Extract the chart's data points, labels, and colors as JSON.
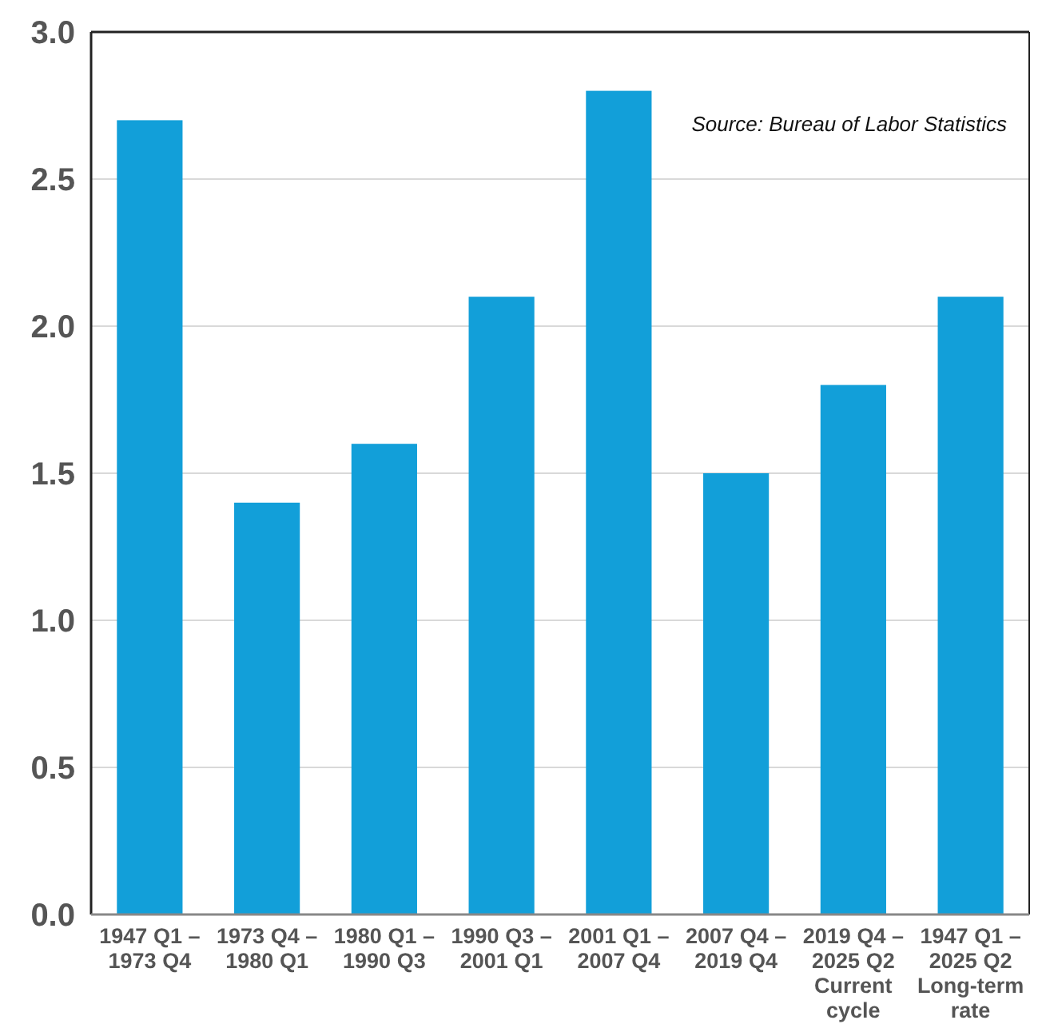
{
  "chart_data": {
    "type": "bar",
    "categories": [
      "1947 Q1 –\n1973 Q4",
      "1973 Q4 –\n1980 Q1",
      "1980 Q1 –\n1990 Q3",
      "1990 Q3 –\n2001 Q1",
      "2001 Q1 –\n2007 Q4",
      "2007 Q4 –\n2019 Q4",
      "2019 Q4 –\n2025 Q2\nCurrent\ncycle",
      "1947 Q1 –\n2025 Q2\nLong-term\nrate"
    ],
    "values": [
      2.7,
      1.4,
      1.6,
      2.1,
      2.8,
      1.5,
      1.8,
      2.1
    ],
    "color": "#129fd9",
    "ylim": [
      0,
      3
    ],
    "yticks": [
      {
        "value": 0,
        "label": "0.0"
      },
      {
        "value": 0.5,
        "label": "0.5"
      },
      {
        "value": 1,
        "label": "1.0"
      },
      {
        "value": 1.5,
        "label": "1.5"
      },
      {
        "value": 2,
        "label": "2.0"
      },
      {
        "value": 2.5,
        "label": "2.5"
      },
      {
        "value": 3,
        "label": "3.0"
      }
    ],
    "grid": "y",
    "annotations": [
      "Source: Bureau of Labor Statistics"
    ]
  }
}
